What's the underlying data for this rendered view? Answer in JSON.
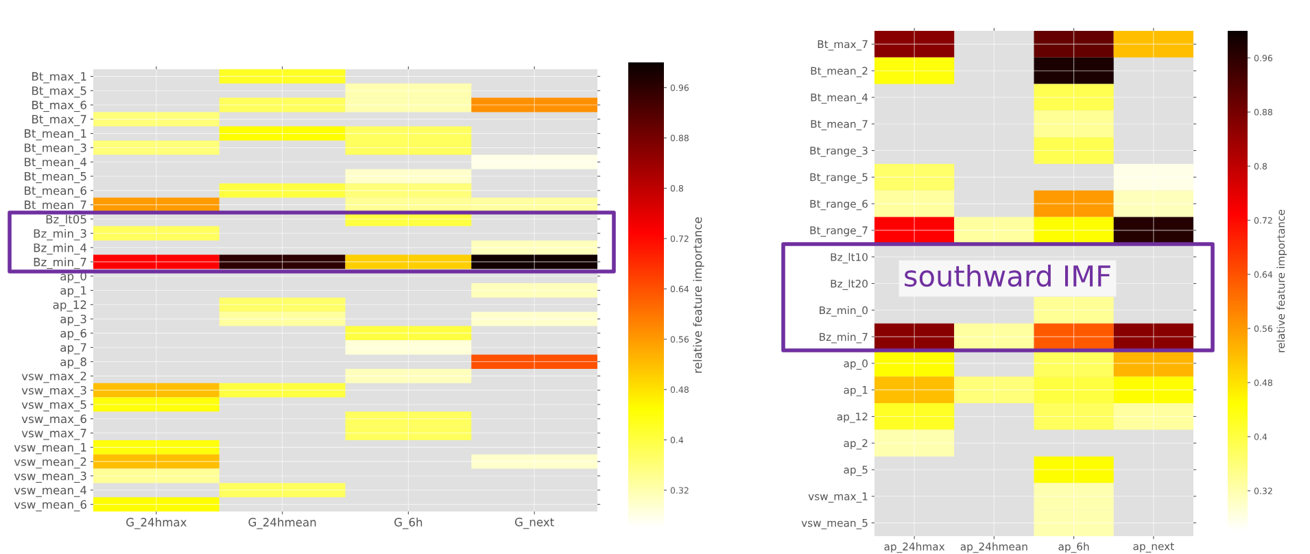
{
  "chart_data": [
    {
      "type": "heatmap",
      "categories": [
        "G_24hmax",
        "G_24hmean",
        "G_6h",
        "G_next"
      ],
      "y_categories": [
        "Bt_max_1",
        "Bt_max_5",
        "Bt_max_6",
        "Bt_max_7",
        "Bt_mean_1",
        "Bt_mean_3",
        "Bt_mean_4",
        "Bt_mean_5",
        "Bt_mean_6",
        "Bt_mean_7",
        "Bz_lt05",
        "Bz_min_3",
        "Bz_min_4",
        "Bz_min_7",
        "ap_0",
        "ap_1",
        "ap_12",
        "ap_3",
        "ap_6",
        "ap_7",
        "ap_8",
        "vsw_max_2",
        "vsw_max_3",
        "vsw_max_5",
        "vsw_max_6",
        "vsw_max_7",
        "vsw_mean_1",
        "vsw_mean_2",
        "vsw_mean_3",
        "vsw_mean_4",
        "vsw_mean_6"
      ],
      "cells": [
        [
          null,
          0.42,
          null,
          null
        ],
        [
          null,
          null,
          0.32,
          null
        ],
        [
          null,
          0.38,
          0.32,
          0.57
        ],
        [
          0.36,
          null,
          null,
          null
        ],
        [
          null,
          0.45,
          0.38,
          null
        ],
        [
          0.36,
          null,
          0.38,
          null
        ],
        [
          null,
          null,
          null,
          0.28
        ],
        [
          null,
          null,
          0.3,
          null
        ],
        [
          null,
          0.4,
          0.36,
          null
        ],
        [
          0.56,
          null,
          0.34,
          0.33
        ],
        [
          null,
          null,
          0.4,
          null
        ],
        [
          0.38,
          null,
          null,
          null
        ],
        [
          null,
          null,
          null,
          0.31
        ],
        [
          0.73,
          0.96,
          0.5,
          0.99
        ],
        [
          null,
          null,
          null,
          null
        ],
        [
          null,
          null,
          null,
          0.31
        ],
        [
          null,
          0.37,
          null,
          null
        ],
        [
          null,
          0.33,
          null,
          0.3
        ],
        [
          null,
          null,
          0.4,
          null
        ],
        [
          null,
          null,
          0.29,
          null
        ],
        [
          null,
          null,
          null,
          0.64
        ],
        [
          null,
          null,
          0.31,
          null
        ],
        [
          0.52,
          0.4,
          null,
          null
        ],
        [
          0.44,
          null,
          null,
          null
        ],
        [
          null,
          null,
          0.38,
          null
        ],
        [
          null,
          null,
          0.38,
          null
        ],
        [
          0.44,
          null,
          null,
          null
        ],
        [
          0.52,
          null,
          null,
          0.3
        ],
        [
          0.34,
          null,
          null,
          null
        ],
        [
          null,
          0.38,
          null,
          null
        ],
        [
          0.45,
          null,
          null,
          null
        ]
      ],
      "clim": [
        0.26,
        1.0
      ],
      "cticks": [
        0.32,
        0.4,
        0.48,
        0.56,
        0.64,
        0.72,
        0.8,
        0.88,
        0.96
      ],
      "clabel": "relative feature importance",
      "grid": true
    },
    {
      "type": "heatmap",
      "categories": [
        "ap_24hmax",
        "ap_24hmean",
        "ap_6h",
        "ap_next"
      ],
      "y_categories": [
        "Bt_max_7",
        "Bt_mean_2",
        "Bt_mean_4",
        "Bt_mean_7",
        "Bt_range_3",
        "Bt_range_5",
        "Bt_range_6",
        "Bt_range_7",
        "Bz_lt10",
        "Bz_lt20",
        "Bz_min_0",
        "Bz_min_7",
        "ap_0",
        "ap_1",
        "ap_12",
        "ap_2",
        "ap_5",
        "vsw_max_1",
        "vsw_mean_5"
      ],
      "cells": [
        [
          0.86,
          null,
          0.9,
          0.52
        ],
        [
          0.44,
          null,
          0.98,
          null
        ],
        [
          null,
          null,
          0.39,
          null
        ],
        [
          null,
          null,
          0.34,
          null
        ],
        [
          null,
          null,
          0.39,
          null
        ],
        [
          0.37,
          null,
          null,
          0.28
        ],
        [
          0.33,
          null,
          0.56,
          0.31
        ],
        [
          0.73,
          0.33,
          0.45,
          0.97
        ],
        [
          null,
          null,
          null,
          null
        ],
        [
          null,
          null,
          null,
          null
        ],
        [
          null,
          null,
          0.34,
          null
        ],
        [
          0.86,
          0.33,
          0.63,
          0.86
        ],
        [
          0.45,
          null,
          0.38,
          0.53
        ],
        [
          0.52,
          0.36,
          0.4,
          0.45
        ],
        [
          0.42,
          null,
          0.38,
          0.33
        ],
        [
          0.32,
          null,
          null,
          null
        ],
        [
          null,
          null,
          0.45,
          null
        ],
        [
          null,
          null,
          0.32,
          null
        ],
        [
          null,
          null,
          0.32,
          null
        ]
      ],
      "clim": [
        0.26,
        1.0
      ],
      "cticks": [
        0.32,
        0.4,
        0.48,
        0.56,
        0.64,
        0.72,
        0.8,
        0.88,
        0.96
      ],
      "clabel": "relative feature importance",
      "grid": true,
      "annotations": [
        "southward IMF"
      ]
    }
  ]
}
